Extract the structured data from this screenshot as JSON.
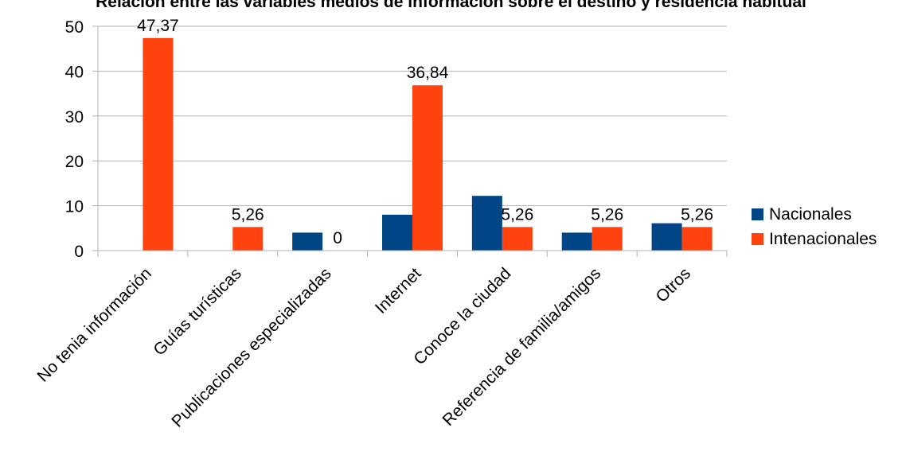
{
  "chart_data": {
    "type": "bar",
    "title": "Relación entre las variables medios de información sobre el destino y residencia habitual",
    "xlabel": "",
    "ylabel": "",
    "ylim": [
      0,
      50
    ],
    "yticks": [
      0,
      10,
      20,
      30,
      40,
      50
    ],
    "grid": true,
    "legend_position": "right",
    "categories": [
      "No tenia información",
      "Guías turísticas",
      "Publicaciones especializadas",
      "Internet",
      "Conoce la ciudad",
      "Referencia de familia/amigos",
      "Otros"
    ],
    "series": [
      {
        "name": "Nacionales",
        "color": "#004586",
        "values": [
          0,
          0,
          4,
          8,
          12.2,
          4,
          6.1
        ],
        "labels": [
          "",
          "",
          "",
          "",
          "",
          "",
          ""
        ]
      },
      {
        "name": "Intenacionales",
        "color": "#ff420e",
        "values": [
          47.37,
          5.26,
          0,
          36.84,
          5.26,
          5.26,
          5.26
        ],
        "labels": [
          "47,37",
          "5,26",
          "0",
          "36,84",
          "5,26",
          "5,26",
          "5,26"
        ]
      }
    ]
  }
}
